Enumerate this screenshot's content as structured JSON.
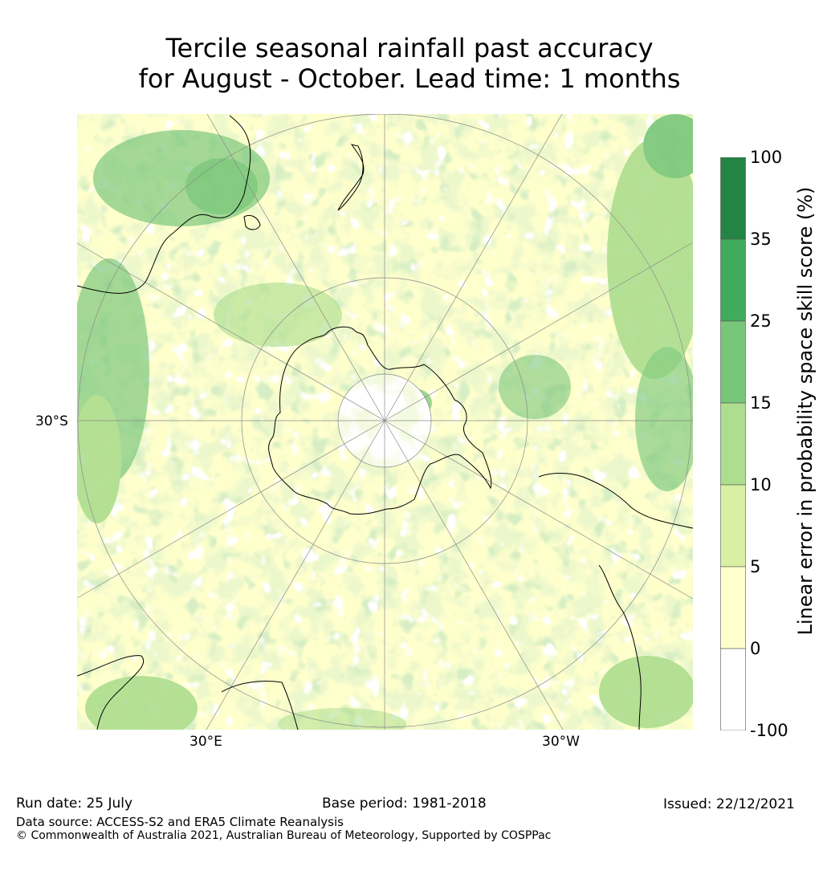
{
  "title": {
    "line1": "Tercile seasonal rainfall past accuracy",
    "line2": "for August - October. Lead time: 1 months"
  },
  "map": {
    "projection": "south-polar-stereographic",
    "labels": {
      "lat": "30°S",
      "lon_east": "30°E",
      "lon_west": "30°W"
    },
    "colors": {
      "coast": "#000000",
      "grid": "#8a8a8a"
    }
  },
  "colorbar": {
    "label": "Linear error in probability space skill score (%)",
    "ticks": [
      "100",
      "35",
      "25",
      "15",
      "10",
      "5",
      "0",
      "-100"
    ],
    "bins": [
      {
        "from": 35,
        "to": 100,
        "color": "#238443"
      },
      {
        "from": 25,
        "to": 35,
        "color": "#41ab5d"
      },
      {
        "from": 15,
        "to": 25,
        "color": "#78c679"
      },
      {
        "from": 10,
        "to": 15,
        "color": "#addd8e"
      },
      {
        "from": 5,
        "to": 10,
        "color": "#d9f0a3"
      },
      {
        "from": 0,
        "to": 5,
        "color": "#ffffcc"
      },
      {
        "from": -100,
        "to": 0,
        "color": "#ffffff"
      }
    ]
  },
  "footer": {
    "run_date": "Run date: 25 July",
    "base_period": "Base period: 1981-2018",
    "issued": "Issued: 22/12/2021",
    "data_source": "Data source: ACCESS-S2 and ERA5 Climate Reanalysis",
    "copyright": "© Commonwealth of Australia 2021, Australian Bureau of Meteorology, Supported by COSPPac"
  }
}
